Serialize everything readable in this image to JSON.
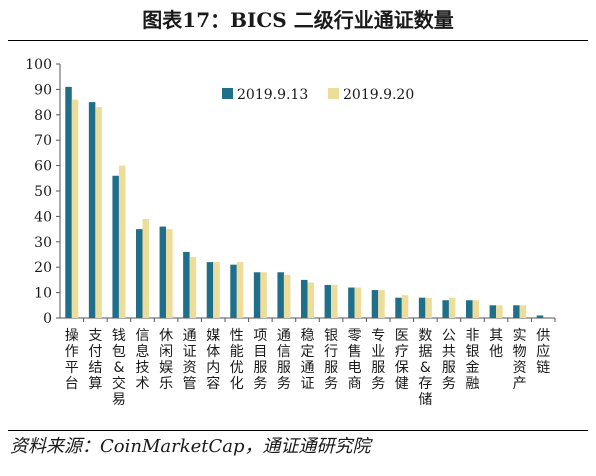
{
  "title": "图表17：BICS 二级行业通证数量",
  "source": "资料来源：CoinMarketCap，通证通研究院",
  "colors": {
    "series1": "#1f6f8b",
    "series2": "#eedc9a"
  },
  "chart_data": {
    "type": "bar",
    "categories": [
      "操作平台",
      "支付结算",
      "钱包&交易",
      "信息技术",
      "休闲娱乐",
      "通证资管",
      "媒体内容",
      "性能优化",
      "项目服务",
      "通信服务",
      "稳定通证",
      "银行服务",
      "零售电商",
      "专业服务",
      "医疗保健",
      "数据&存储",
      "公共服务",
      "非银金融",
      "其他",
      "实物资产",
      "供应链"
    ],
    "series": [
      {
        "name": "2019.9.13",
        "values": [
          91,
          85,
          56,
          35,
          36,
          26,
          22,
          21,
          18,
          18,
          15,
          13,
          12,
          11,
          8,
          8,
          7,
          7,
          5,
          5,
          1
        ]
      },
      {
        "name": "2019.9.20",
        "values": [
          86,
          83,
          60,
          39,
          35,
          24,
          22,
          22,
          18,
          17,
          14,
          13,
          12,
          11,
          9,
          8,
          8,
          7,
          5,
          5,
          0
        ]
      }
    ],
    "ylim": [
      0,
      100
    ],
    "yticks": [
      0,
      10,
      20,
      30,
      40,
      50,
      60,
      70,
      80,
      90,
      100
    ],
    "legend": "top-right",
    "grid": false
  }
}
